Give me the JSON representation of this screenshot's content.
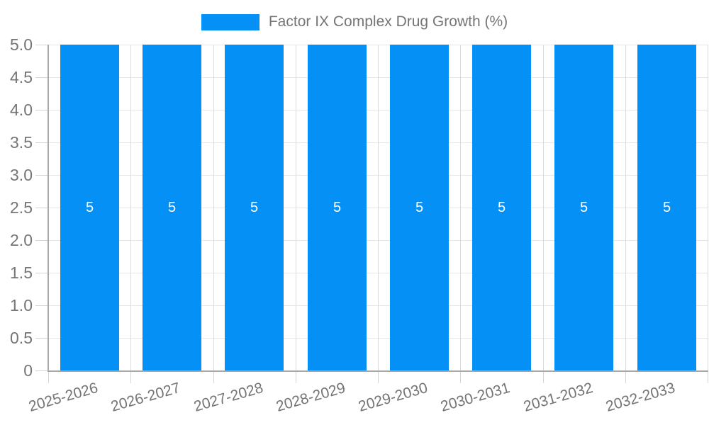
{
  "legend": {
    "label": "Factor IX Complex Drug Growth (%)"
  },
  "chart_data": {
    "type": "bar",
    "title": "Factor IX Complex Drug Growth (%)",
    "categories": [
      "2025-2026",
      "2026-2027",
      "2027-2028",
      "2028-2029",
      "2029-2030",
      "2030-2031",
      "2031-2032",
      "2032-2033"
    ],
    "series": [
      {
        "name": "Factor IX Complex Drug Growth (%)",
        "values": [
          5,
          5,
          5,
          5,
          5,
          5,
          5,
          5
        ]
      }
    ],
    "bar_value_labels": [
      "5",
      "5",
      "5",
      "5",
      "5",
      "5",
      "5",
      "5"
    ],
    "xlabel": "",
    "ylabel": "",
    "ylim": [
      0,
      5
    ],
    "ytick_step": 0.5,
    "yticks": [
      {
        "value": 0,
        "label": "0"
      },
      {
        "value": 0.5,
        "label": "0.5"
      },
      {
        "value": 1,
        "label": "1.0"
      },
      {
        "value": 1.5,
        "label": "1.5"
      },
      {
        "value": 2,
        "label": "2.0"
      },
      {
        "value": 2.5,
        "label": "2.5"
      },
      {
        "value": 3,
        "label": "3.0"
      },
      {
        "value": 3.5,
        "label": "3.5"
      },
      {
        "value": 4,
        "label": "4.0"
      },
      {
        "value": 4.5,
        "label": "4.5"
      },
      {
        "value": 5,
        "label": "5.0"
      }
    ],
    "grid": true,
    "legend_position": "top-center",
    "xlabel_rotation_deg": -16,
    "colors": {
      "bar": "#0590f5",
      "text": "#757575",
      "grid_h": "#e6e6e6",
      "grid_v": "#dcdcdc",
      "axis": "#a8a8a8",
      "tick": "#d4d4d4",
      "bar_label": "#ffffff",
      "background": "#ffffff"
    }
  }
}
